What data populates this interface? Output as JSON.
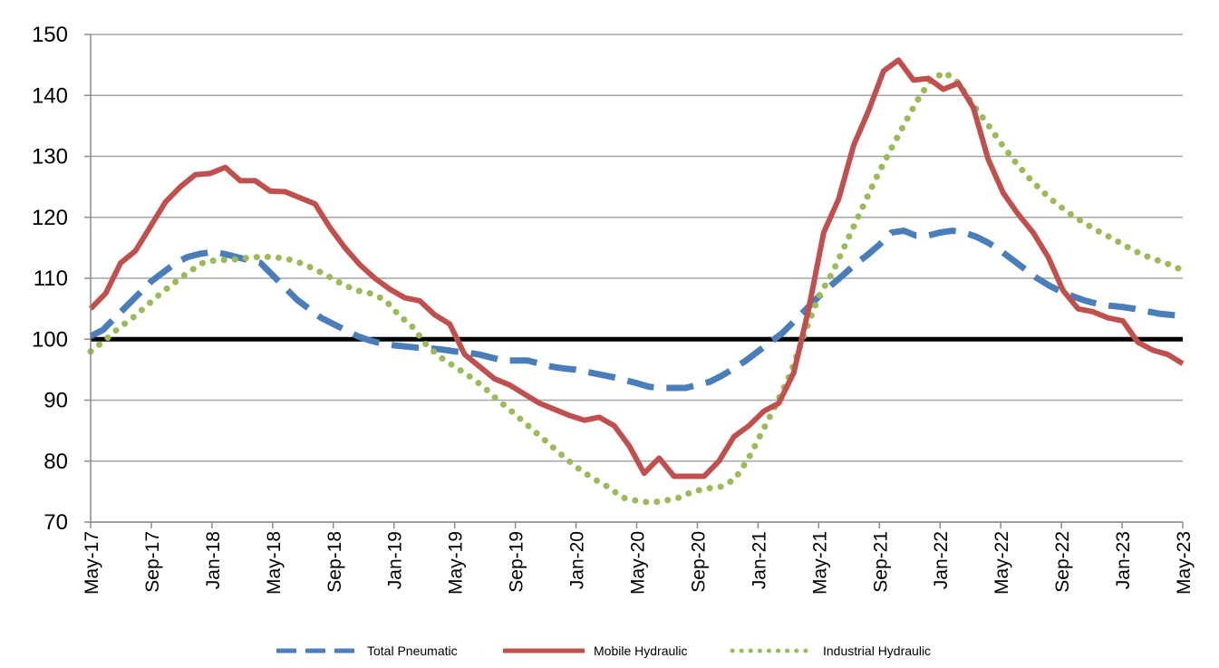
{
  "chart_data": {
    "type": "line",
    "title": "",
    "xlabel": "",
    "ylabel": "",
    "ylim": [
      70,
      150
    ],
    "yticks": [
      "70",
      "80",
      "90",
      "100",
      "110",
      "120",
      "130",
      "140",
      "150"
    ],
    "reference_line": {
      "y": 100,
      "color": "#000000"
    },
    "x_start": "May-17",
    "x_end": "May-23",
    "xtick_labels": [
      "May-17",
      "Sep-17",
      "Jan-18",
      "May-18",
      "Sep-18",
      "Jan-19",
      "May-19",
      "Sep-19",
      "Jan-20",
      "May-20",
      "Sep-20",
      "Jan-21",
      "May-21",
      "Sep-21",
      "Jan-22",
      "May-22",
      "Sep-22",
      "Jan-23",
      "May-23"
    ],
    "grid": "horizontal",
    "legend_position": "bottom",
    "series": [
      {
        "name": "Total Pneumatic",
        "color": "#4A7EBB",
        "style": "dashed",
        "values": [
          100.5,
          101.5,
          103.5,
          105.5,
          107.5,
          109.5,
          111,
          112.5,
          113.5,
          114,
          114.3,
          114,
          113.5,
          113,
          112.5,
          110.5,
          108.5,
          106.5,
          105,
          103.5,
          102.5,
          101.5,
          100.5,
          99.8,
          99.3,
          99,
          98.8,
          98.6,
          98.5,
          98.3,
          98,
          97.8,
          97.5,
          97,
          96.5,
          96.5,
          96.5,
          96,
          95.5,
          95.2,
          95,
          94.6,
          94.2,
          93.8,
          93.3,
          92.8,
          92.2,
          92,
          92,
          92,
          92.5,
          93,
          94,
          95.2,
          96.5,
          98,
          99.5,
          101,
          103,
          105,
          107,
          108.8,
          110.5,
          112.3,
          113.8,
          115.5,
          117.5,
          117.8,
          117,
          117,
          117.5,
          117.8,
          117.5,
          116.8,
          115.8,
          114.5,
          113,
          111.5,
          110,
          108.8,
          107.8,
          107,
          106.3,
          105.8,
          105.5,
          105.3,
          105,
          104.6,
          104.2,
          104,
          103.8
        ]
      },
      {
        "name": "Mobile Hydraulic",
        "color": "#C0504D",
        "style": "solid",
        "values": [
          105,
          107.5,
          112.5,
          114.5,
          118.5,
          122.5,
          125,
          127,
          127.2,
          128.2,
          126,
          126,
          124.3,
          124.2,
          123.2,
          122.2,
          118.3,
          115,
          112.2,
          110,
          108.2,
          106.8,
          106.3,
          104,
          102.5,
          97.5,
          95.5,
          93.5,
          92.5,
          91,
          89.5,
          88.5,
          87.5,
          86.7,
          87.2,
          85.8,
          82.5,
          78,
          80.5,
          77.5,
          77.5,
          77.5,
          80,
          84,
          85.8,
          88.2,
          89.5,
          94.5,
          105,
          117.5,
          123,
          131.8,
          137.5,
          144,
          145.8,
          142.5,
          142.8,
          141,
          142,
          138,
          129.5,
          124,
          120.5,
          117.5,
          113.5,
          108,
          105,
          104.5,
          103.5,
          103,
          99.5,
          98.2,
          97.5,
          96
        ]
      },
      {
        "name": "Industrial Hydraulic",
        "color": "#9BBB59",
        "style": "dotted",
        "values": [
          98,
          99.8,
          101.8,
          103.5,
          105.5,
          107.5,
          109.3,
          111,
          112.5,
          113,
          113,
          113.3,
          113.5,
          113.5,
          113.2,
          112.5,
          111.5,
          110.3,
          109,
          108,
          107.5,
          106.5,
          104,
          102,
          99,
          97,
          95.5,
          94,
          92.3,
          90.2,
          88.3,
          86.3,
          84.3,
          82.3,
          80.3,
          78.5,
          77,
          75.7,
          74,
          73.5,
          73.2,
          73.5,
          74,
          75,
          75.5,
          75.8,
          77,
          80.5,
          85,
          89.5,
          94.5,
          101,
          107,
          111,
          116,
          121,
          126,
          130.5,
          134.8,
          139,
          142.5,
          143.8,
          142,
          138.5,
          135.5,
          132.2,
          129.2,
          126.5,
          124.2,
          122.2,
          120.5,
          119,
          117.7,
          116.5,
          115.2,
          114,
          113.1,
          112.3,
          111.3
        ]
      }
    ]
  }
}
